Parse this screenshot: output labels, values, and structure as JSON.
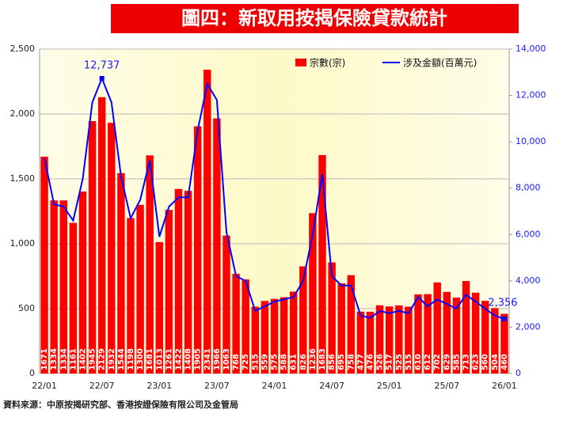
{
  "chart_data": {
    "type": "combo",
    "title": "圖四：新取用按揭保險貸款統計",
    "source": "資料來源：中原按揭研究部、香港按證保險有限公司及金管局",
    "categories": [
      "22/01",
      null,
      null,
      null,
      null,
      null,
      "22/07",
      null,
      null,
      null,
      null,
      null,
      "23/01",
      null,
      null,
      null,
      null,
      null,
      "23/07",
      null,
      null,
      null,
      null,
      null,
      "24/01",
      null,
      null,
      null,
      null,
      null,
      "24/07",
      null,
      null,
      null,
      null,
      null,
      "25/01",
      null,
      null,
      null,
      null,
      null,
      "25/07",
      null,
      null,
      null,
      null,
      null,
      "26/01"
    ],
    "series": [
      {
        "name": "宗數(宗)",
        "type": "bar",
        "color": "#ff0000",
        "values": [
          1671,
          1334,
          1334,
          1161,
          1402,
          1945,
          2129,
          1932,
          1544,
          1198,
          1300,
          1681,
          1013,
          1261,
          1422,
          1408,
          1905,
          2341,
          1966,
          1063,
          768,
          725,
          515,
          559,
          575,
          588,
          631,
          826,
          1236,
          1683,
          856,
          695,
          758,
          477,
          476,
          526,
          517,
          525,
          515,
          610,
          612,
          702,
          629,
          585,
          713,
          623,
          560,
          504,
          460
        ]
      },
      {
        "name": "涉及金額(百萬元)",
        "type": "line",
        "color": "#0000ff",
        "axis": "y2",
        "values": [
          9300,
          7300,
          7200,
          6600,
          8400,
          11700,
          12737,
          11700,
          8500,
          6700,
          7500,
          9200,
          5900,
          7200,
          7600,
          7600,
          10500,
          12500,
          11800,
          6100,
          4200,
          4000,
          2700,
          2900,
          3100,
          3200,
          3300,
          4000,
          6000,
          8600,
          4200,
          3800,
          3800,
          2500,
          2400,
          2700,
          2600,
          2700,
          2600,
          3300,
          2900,
          3200,
          3000,
          2800,
          3400,
          3100,
          2800,
          2500,
          2356
        ],
        "value_labels": [
          null,
          null,
          null,
          null,
          null,
          null,
          "12,737",
          null,
          null,
          null,
          null,
          null,
          null,
          null,
          null,
          null,
          null,
          null,
          null,
          null,
          null,
          null,
          null,
          null,
          null,
          null,
          null,
          null,
          null,
          null,
          null,
          null,
          null,
          null,
          null,
          null,
          null,
          null,
          null,
          null,
          null,
          null,
          null,
          null,
          null,
          null,
          null,
          null,
          "2,356"
        ]
      }
    ],
    "ylim": [
      0,
      2500
    ],
    "yticks": [
      0,
      500,
      {
        "value": 1000,
        "label": "1,000"
      },
      {
        "value": 1500,
        "label": "1,500"
      },
      {
        "value": 2000,
        "label": "2,000"
      },
      {
        "value": 2500,
        "label": "2,500"
      }
    ],
    "y2lim": [
      0,
      14000
    ],
    "y2ticks": [
      0,
      {
        "value": 2000,
        "label": "2,000"
      },
      {
        "value": 4000,
        "label": "4,000"
      },
      {
        "value": 6000,
        "label": "6,000"
      },
      {
        "value": 8000,
        "label": "8,000"
      },
      {
        "value": 10000,
        "label": "10,000"
      },
      {
        "value": 12000,
        "label": "12,000"
      },
      {
        "value": 14000,
        "label": "14,000"
      }
    ],
    "grid": true,
    "legend": "top-right"
  }
}
